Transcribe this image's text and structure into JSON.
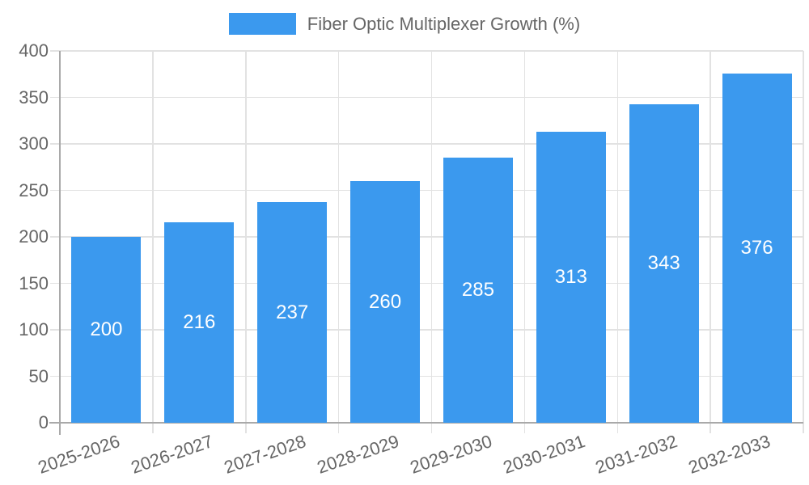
{
  "chart_data": {
    "type": "bar",
    "title": "Fiber Optic Multiplexer Growth (%)",
    "legend": {
      "label": "Fiber Optic Multiplexer Growth (%)",
      "position": "top"
    },
    "categories": [
      "2025-2026",
      "2026-2027",
      "2027-2028",
      "2028-2029",
      "2029-2030",
      "2030-2031",
      "2031-2032",
      "2032-2033"
    ],
    "values": [
      200,
      216,
      237,
      260,
      285,
      313,
      343,
      376
    ],
    "value_labels": [
      "200",
      "216",
      "237",
      "260",
      "285",
      "313",
      "343",
      "376"
    ],
    "xlabel": "",
    "ylabel": "",
    "ylim": [
      0,
      400
    ],
    "ytick_step": 50,
    "ytick_labels": [
      "0",
      "50",
      "100",
      "150",
      "200",
      "250",
      "300",
      "350",
      "400"
    ],
    "grid": true,
    "legend_visible": true,
    "x_tick_rotation_deg": -19,
    "colors": {
      "bar": "#3B99EE",
      "bar_value_text": "#FFFFFF",
      "axis_line": "#A9A9A9",
      "gridline": "#E2E2E2",
      "tick_label": "#666666",
      "legend_text": "#666666",
      "background": "#FFFFFF"
    }
  }
}
